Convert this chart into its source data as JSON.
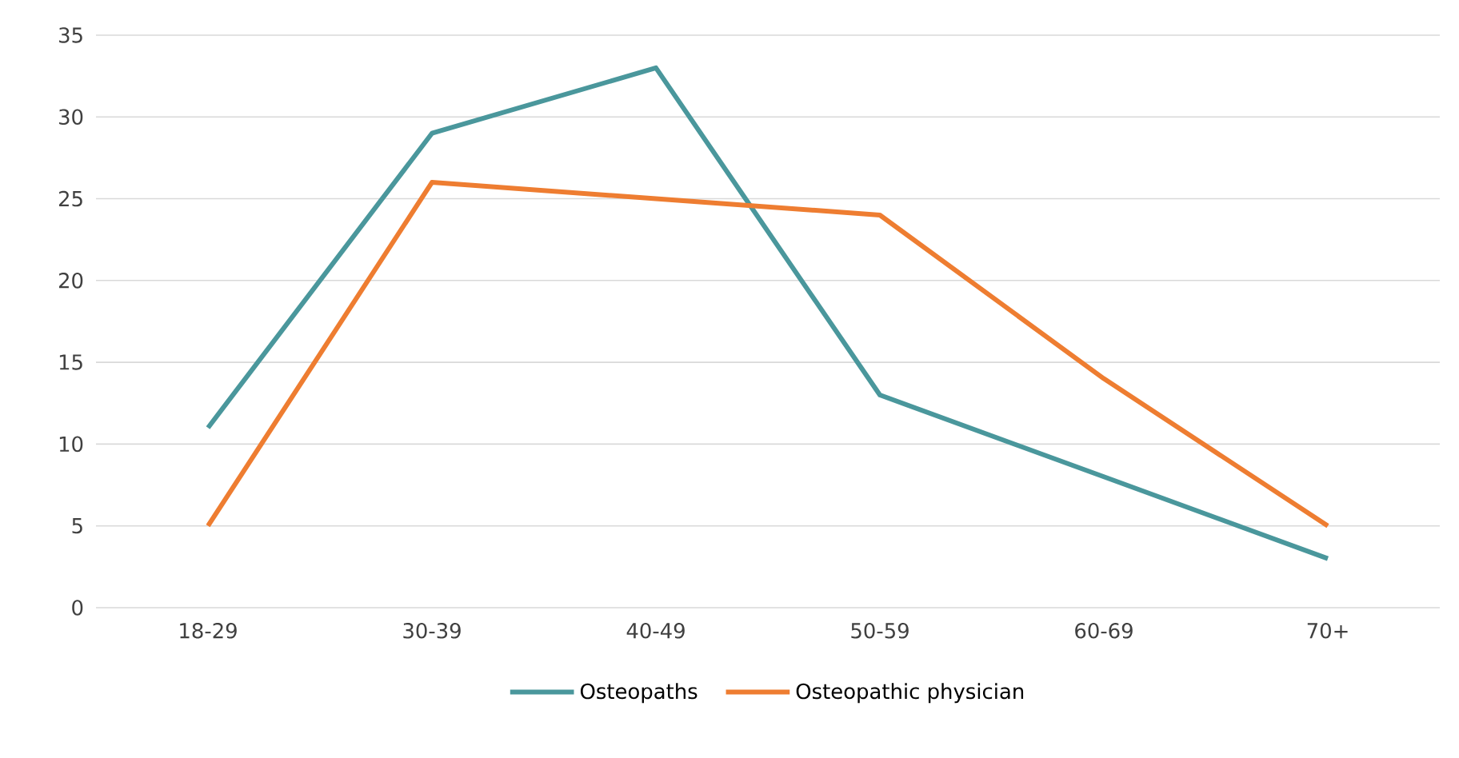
{
  "chart_data": {
    "type": "line",
    "categories": [
      "18-29",
      "30-39",
      "40-49",
      "50-59",
      "60-69",
      "70+"
    ],
    "series": [
      {
        "name": "Osteopaths",
        "color": "#4a979c",
        "values": [
          11,
          29,
          33,
          13,
          8,
          3
        ]
      },
      {
        "name": "Osteopathic physician",
        "color": "#ee7d31",
        "values": [
          5,
          26,
          25,
          24,
          14,
          5
        ]
      }
    ],
    "ylim": [
      0,
      35
    ],
    "yticks": [
      0,
      5,
      10,
      15,
      20,
      25,
      30,
      35
    ],
    "grid": "y",
    "legend": "bottom",
    "marker": "none",
    "line_style": "solid"
  }
}
